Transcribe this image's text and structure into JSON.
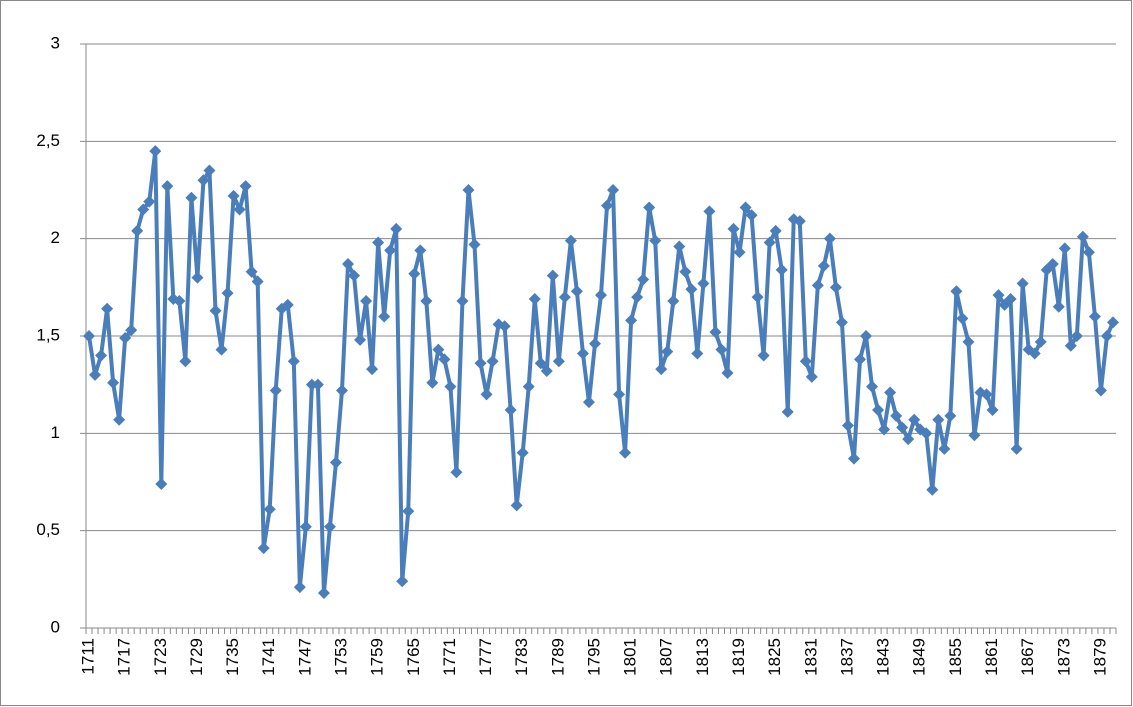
{
  "chart_data": {
    "type": "line",
    "color": "#4a7ebb",
    "grid": true,
    "ylim": [
      0,
      3
    ],
    "yticks": [
      0,
      {
        "value": 0.5,
        "label": "0,5"
      },
      1,
      {
        "value": 1.5,
        "label": "1,5"
      },
      2,
      {
        "value": 2.5,
        "label": "2,5"
      },
      3
    ],
    "categories": [
      "1711",
      null,
      null,
      null,
      null,
      null,
      "1717",
      null,
      null,
      null,
      null,
      null,
      "1723",
      null,
      null,
      null,
      null,
      null,
      "1729",
      null,
      null,
      null,
      null,
      null,
      "1735",
      null,
      null,
      null,
      null,
      null,
      "1741",
      null,
      null,
      null,
      null,
      null,
      "1747",
      null,
      null,
      null,
      null,
      null,
      "1753",
      null,
      null,
      null,
      null,
      null,
      "1759",
      null,
      null,
      null,
      null,
      null,
      "1765",
      null,
      null,
      null,
      null,
      null,
      "1771",
      null,
      null,
      null,
      null,
      null,
      "1777",
      null,
      null,
      null,
      null,
      null,
      "1783",
      null,
      null,
      null,
      null,
      null,
      "1789",
      null,
      null,
      null,
      null,
      null,
      "1795",
      null,
      null,
      null,
      null,
      null,
      "1801",
      null,
      null,
      null,
      null,
      null,
      "1807",
      null,
      null,
      null,
      null,
      null,
      "1813",
      null,
      null,
      null,
      null,
      null,
      "1819",
      null,
      null,
      null,
      null,
      null,
      "1825",
      null,
      null,
      null,
      null,
      null,
      "1831",
      null,
      null,
      null,
      null,
      null,
      "1837",
      null,
      null,
      null,
      null,
      null,
      "1843",
      null,
      null,
      null,
      null,
      null,
      "1849",
      null,
      null,
      null,
      null,
      null,
      "1855",
      null,
      null,
      null,
      null,
      null,
      "1861",
      null,
      null,
      null,
      null,
      null,
      "1867",
      null,
      null,
      null,
      null,
      null,
      "1873",
      null,
      null,
      null,
      null,
      null,
      "1879",
      null,
      null
    ],
    "values": [
      1.5,
      1.3,
      1.4,
      1.64,
      1.26,
      1.07,
      1.49,
      1.53,
      2.04,
      2.15,
      2.19,
      2.45,
      0.74,
      2.27,
      1.69,
      1.68,
      1.37,
      2.21,
      1.8,
      2.3,
      2.35,
      1.63,
      1.43,
      1.72,
      2.22,
      2.15,
      2.27,
      1.83,
      1.78,
      0.41,
      0.61,
      1.22,
      1.64,
      1.66,
      1.37,
      0.21,
      0.52,
      1.25,
      1.25,
      0.18,
      0.52,
      0.85,
      1.22,
      1.87,
      1.81,
      1.48,
      1.68,
      1.33,
      1.98,
      1.6,
      1.94,
      2.05,
      0.24,
      0.6,
      1.82,
      1.94,
      1.68,
      1.26,
      1.43,
      1.38,
      1.24,
      0.8,
      1.68,
      2.25,
      1.97,
      1.36,
      1.2,
      1.37,
      1.56,
      1.55,
      1.12,
      0.63,
      0.9,
      1.24,
      1.69,
      1.36,
      1.32,
      1.81,
      1.37,
      1.7,
      1.99,
      1.73,
      1.41,
      1.16,
      1.46,
      1.71,
      2.17,
      2.25,
      1.2,
      0.9,
      1.58,
      1.7,
      1.79,
      2.16,
      1.99,
      1.33,
      1.42,
      1.68,
      1.96,
      1.83,
      1.74,
      1.41,
      1.77,
      2.14,
      1.52,
      1.43,
      1.31,
      2.05,
      1.93,
      2.16,
      2.12,
      1.7,
      1.4,
      1.98,
      2.04,
      1.84,
      1.11,
      2.1,
      2.09,
      1.37,
      1.29,
      1.76,
      1.86,
      2.0,
      1.75,
      1.57,
      1.04,
      0.87,
      1.38,
      1.5,
      1.24,
      1.12,
      1.02,
      1.21,
      1.09,
      1.03,
      0.97,
      1.07,
      1.02,
      1.0,
      0.71,
      1.07,
      0.92,
      1.09,
      1.73,
      1.59,
      1.47,
      0.99,
      1.21,
      1.2,
      1.12,
      1.71,
      1.66,
      1.69,
      0.92,
      1.77,
      1.43,
      1.41,
      1.47,
      1.84,
      1.87,
      1.65,
      1.95,
      1.45,
      1.5,
      2.01,
      1.93,
      1.6,
      1.22,
      1.5,
      1.57
    ]
  }
}
